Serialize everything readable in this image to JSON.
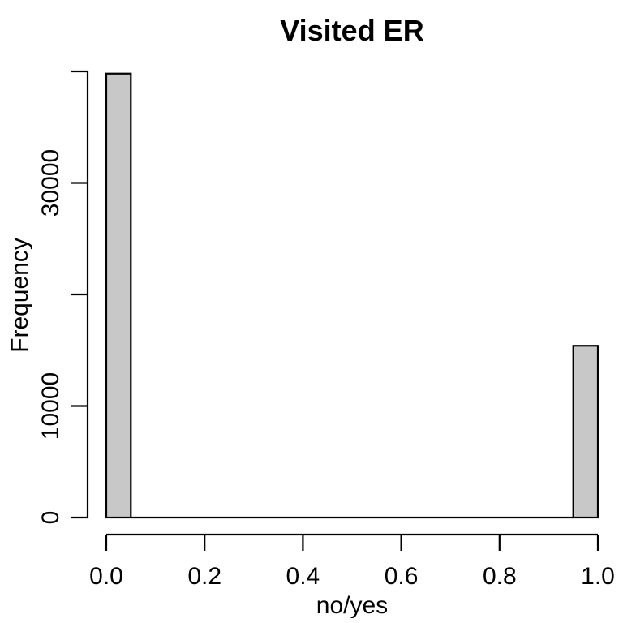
{
  "chart_data": {
    "type": "bar",
    "title": "Visited ER",
    "xlabel": "no/yes",
    "ylabel": "Frequency",
    "bin_width": 0.05,
    "bins": [
      {
        "start": 0.0,
        "end": 0.05,
        "count": 39800
      },
      {
        "start": 0.05,
        "end": 0.95,
        "count": 0
      },
      {
        "start": 0.95,
        "end": 1.0,
        "count": 15400
      }
    ],
    "xlim": [
      0,
      1
    ],
    "ylim": [
      0,
      40000
    ],
    "x_ticks": [
      "0.0",
      "0.2",
      "0.4",
      "0.6",
      "0.8",
      "1.0"
    ],
    "y_ticks": [
      "0",
      "10000",
      "30000"
    ],
    "bar_color": "#c8c8c8",
    "grid": false
  }
}
